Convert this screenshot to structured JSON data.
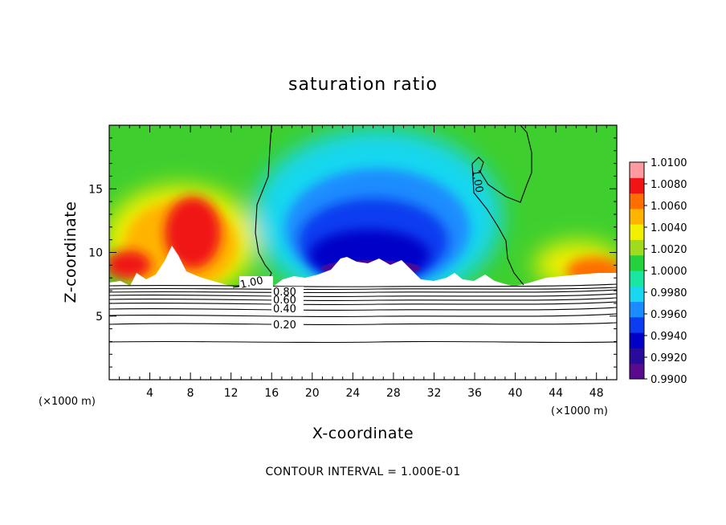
{
  "chart_data": {
    "type": "heatmap",
    "title": "saturation ratio",
    "xlabel": "X-coordinate",
    "ylabel": "Z-coordinate",
    "x_unit_left": "(×1000 m)",
    "x_unit_right": "(×1000 m)",
    "xlim": [
      0,
      50
    ],
    "ylim": [
      0,
      20
    ],
    "x_ticks": [
      4,
      8,
      12,
      16,
      20,
      24,
      28,
      32,
      36,
      40,
      44,
      48
    ],
    "y_ticks": [
      5,
      10,
      15
    ],
    "colorbar": {
      "levels": [
        "1.0100",
        "1.0080",
        "1.0060",
        "1.0040",
        "1.0020",
        "1.0000",
        "0.9980",
        "0.9960",
        "0.9940",
        "0.9920",
        "0.9900"
      ],
      "min": 0.99,
      "max": 1.01,
      "colors": [
        "#5a0a8c",
        "#2a0a9a",
        "#0000c8",
        "#0a3cf0",
        "#1a8cff",
        "#19d7f0",
        "#19e6a0",
        "#23d23c",
        "#a0dc1e",
        "#f0f000",
        "#ffb400",
        "#ff6e00",
        "#f01414",
        "#ff9aa0"
      ]
    },
    "contour_labels": [
      {
        "text": "1.00"
      },
      {
        "text": "1.00"
      },
      {
        "text": "0.80"
      },
      {
        "text": "0.60"
      },
      {
        "text": "0.40"
      },
      {
        "text": "0.20"
      }
    ],
    "note": "CONTOUR INTERVAL = 1.000E-01"
  }
}
